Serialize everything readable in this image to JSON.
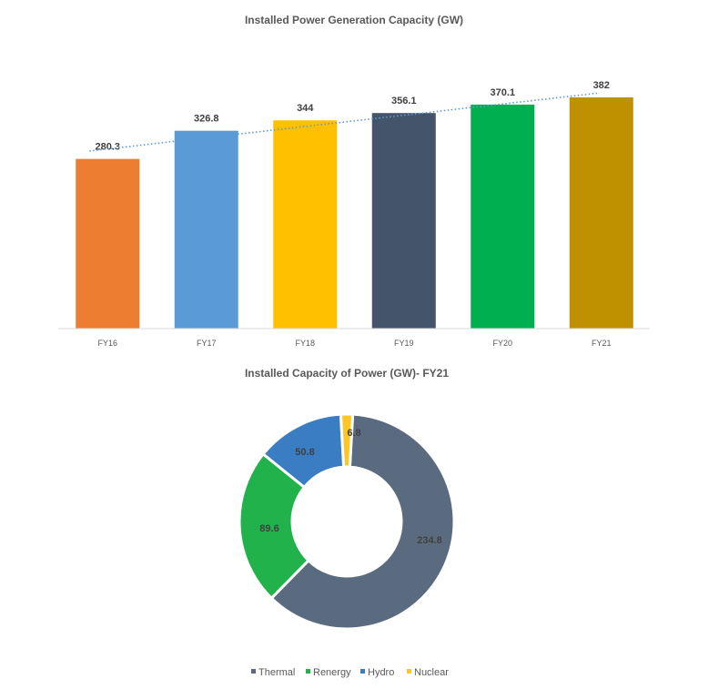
{
  "chart_data": [
    {
      "type": "bar",
      "title": "Installed Power Generation Capacity (GW)",
      "categories": [
        "FY16",
        "FY17",
        "FY18",
        "FY19",
        "FY20",
        "FY21"
      ],
      "values": [
        280.3,
        326.8,
        344,
        356.1,
        370.1,
        382
      ],
      "value_labels": [
        "280.3",
        "326.8",
        "344",
        "356.1",
        "370.1",
        "382"
      ],
      "colors": [
        "#ED7D31",
        "#5B9BD5",
        "#FFC000",
        "#44546A",
        "#00B050",
        "#BF9000"
      ],
      "ylim": [
        0,
        400
      ],
      "grid": false,
      "trendline": {
        "type": "linear",
        "style": "dotted",
        "color": "#5B9BD5"
      }
    },
    {
      "type": "pie",
      "subtype": "donut",
      "title": "Installed Capacity of Power (GW)- FY21",
      "labels": [
        "Thermal",
        "Renergy",
        "Hydro",
        "Nuclear"
      ],
      "values": [
        234.8,
        89.6,
        50.8,
        6.8
      ],
      "value_labels": [
        "234.8",
        "89.6",
        "50.8",
        "6.8"
      ],
      "colors": [
        "#5A6B80",
        "#21B24B",
        "#3A7DC3",
        "#FFC627"
      ],
      "legend": "bottom"
    }
  ]
}
